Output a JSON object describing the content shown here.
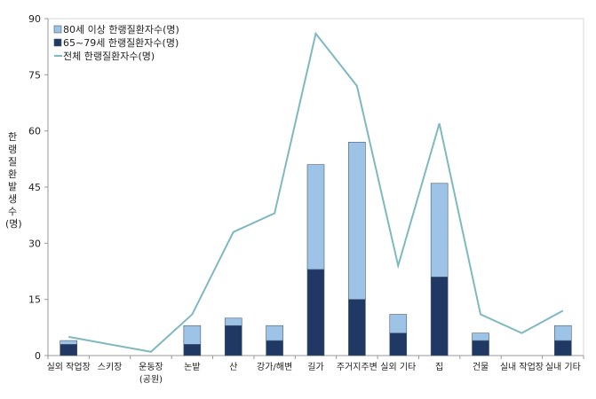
{
  "chart_data": {
    "type": "bar",
    "stacked": true,
    "title": "",
    "xlabel": "",
    "ylabel": "한랭질환발생수(명)",
    "ylim": [
      0,
      90
    ],
    "yticks": [
      0,
      15,
      30,
      45,
      60,
      75,
      90
    ],
    "grid": false,
    "legend_position": "top-left",
    "categories": [
      "실외 작업장",
      "스키장",
      "운동장\n(공원)",
      "논밭",
      "산",
      "강가/해변",
      "길가",
      "주거지주변",
      "실외 기타",
      "집",
      "건물",
      "실내 작업장",
      "실내 기타"
    ],
    "series": [
      {
        "name": "65~79세 한랭질환자수(명)",
        "kind": "bar",
        "color": "#1f3864",
        "values": [
          3,
          0,
          0,
          3,
          8,
          4,
          23,
          15,
          6,
          21,
          4,
          0,
          4
        ]
      },
      {
        "name": "80세 이상 한랭질환자수(명)",
        "kind": "bar",
        "color": "#9dc3e6",
        "values": [
          1,
          0,
          0,
          5,
          2,
          4,
          28,
          42,
          5,
          25,
          2,
          0,
          4
        ]
      },
      {
        "name": "전체 한랭질환자수(명)",
        "kind": "line",
        "color": "#7fb9c0",
        "values": [
          5,
          3,
          1,
          11,
          33,
          38,
          86,
          72,
          24,
          62,
          11,
          6,
          12
        ]
      }
    ],
    "legend_order": [
      1,
      0,
      2
    ]
  }
}
